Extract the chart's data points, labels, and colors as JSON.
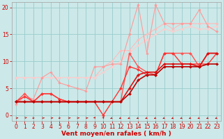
{
  "xlabel": "Vent moyen/en rafales ( km/h )",
  "xlim": [
    -0.5,
    23.5
  ],
  "ylim": [
    -1,
    21
  ],
  "bg_color": "#cce8e8",
  "grid_color": "#99cccc",
  "series": [
    {
      "x": [
        0,
        1,
        2,
        3,
        4,
        5,
        6,
        7,
        8,
        9,
        10,
        11,
        12,
        13,
        14,
        15,
        16,
        17,
        18,
        19,
        20,
        21,
        22,
        23
      ],
      "y": [
        7,
        7,
        7,
        7,
        7,
        7,
        7,
        7,
        7,
        7,
        9,
        10,
        12,
        12,
        14,
        15,
        16,
        17,
        16,
        17,
        17,
        17,
        17,
        17
      ],
      "color": "#ffbbbb",
      "lw": 0.8,
      "marker": "D",
      "ms": 1.8,
      "zorder": 2
    },
    {
      "x": [
        0,
        1,
        2,
        3,
        4,
        5,
        6,
        7,
        8,
        9,
        10,
        11,
        12,
        13,
        14,
        15,
        16,
        17,
        18,
        19,
        20,
        21,
        22,
        23
      ],
      "y": [
        7,
        7,
        7,
        7,
        7,
        7,
        7,
        7,
        7,
        7,
        8,
        9,
        10,
        11.5,
        13,
        14,
        15,
        16,
        15.5,
        16,
        16.5,
        16,
        16,
        16.5
      ],
      "color": "#ffcccc",
      "lw": 0.8,
      "marker": "D",
      "ms": 1.8,
      "zorder": 2
    },
    {
      "x": [
        0,
        1,
        2,
        3,
        4,
        5,
        6,
        7,
        8,
        9,
        10,
        11,
        12,
        13,
        14,
        15,
        16,
        17,
        18,
        19,
        20,
        21,
        22,
        23
      ],
      "y": [
        2,
        3.5,
        3,
        7,
        8,
        6,
        5.5,
        5,
        4.5,
        9,
        9,
        9.5,
        9.5,
        15,
        20.5,
        11.5,
        20.5,
        17,
        17,
        17,
        17,
        19.5,
        16.5,
        15.5
      ],
      "color": "#ff9999",
      "lw": 0.8,
      "marker": "D",
      "ms": 1.8,
      "zorder": 3
    },
    {
      "x": [
        0,
        1,
        2,
        3,
        4,
        5,
        6,
        7,
        8,
        9,
        10,
        11,
        12,
        13,
        14,
        15,
        16,
        17,
        18,
        19,
        20,
        21,
        22,
        23
      ],
      "y": [
        2.5,
        4,
        2.5,
        4,
        4,
        3,
        2.5,
        2.5,
        2.5,
        2.5,
        2.5,
        2.5,
        2.5,
        11.5,
        9,
        8,
        7.5,
        11.5,
        11.5,
        11.5,
        11.5,
        9,
        11.5,
        11.5
      ],
      "color": "#ff5555",
      "lw": 1.0,
      "marker": "D",
      "ms": 2.0,
      "zorder": 4
    },
    {
      "x": [
        0,
        1,
        2,
        3,
        4,
        5,
        6,
        7,
        8,
        9,
        10,
        11,
        12,
        13,
        14,
        15,
        16,
        17,
        18,
        19,
        20,
        21,
        22,
        23
      ],
      "y": [
        2.5,
        3.5,
        2.5,
        4,
        4,
        3,
        2.5,
        2.5,
        2.5,
        2.5,
        0,
        2.5,
        5,
        9,
        8.5,
        7.5,
        7.5,
        11.5,
        11.5,
        9.5,
        9.5,
        9.5,
        9.5,
        11.5
      ],
      "color": "#ff3333",
      "lw": 1.0,
      "marker": "D",
      "ms": 2.0,
      "zorder": 5
    },
    {
      "x": [
        0,
        1,
        2,
        3,
        4,
        5,
        6,
        7,
        8,
        9,
        10,
        11,
        12,
        13,
        14,
        15,
        16,
        17,
        18,
        19,
        20,
        21,
        22,
        23
      ],
      "y": [
        2.5,
        2.5,
        2.5,
        2.5,
        2.5,
        2.5,
        2.5,
        2.5,
        2.5,
        2.5,
        2.5,
        2.5,
        2.5,
        5,
        7.5,
        8,
        8,
        9.5,
        9.5,
        9.5,
        9.5,
        9,
        11.5,
        11.5
      ],
      "color": "#dd1111",
      "lw": 1.2,
      "marker": "D",
      "ms": 2.0,
      "zorder": 6
    },
    {
      "x": [
        0,
        1,
        2,
        3,
        4,
        5,
        6,
        7,
        8,
        9,
        10,
        11,
        12,
        13,
        14,
        15,
        16,
        17,
        18,
        19,
        20,
        21,
        22,
        23
      ],
      "y": [
        2.5,
        2.5,
        2.5,
        2.5,
        2.5,
        2.5,
        2.5,
        2.5,
        2.5,
        2.5,
        2.5,
        2.5,
        2.5,
        4,
        6.5,
        7.5,
        7.5,
        9,
        9,
        9,
        9,
        9,
        9.5,
        9.5
      ],
      "color": "#bb0000",
      "lw": 1.2,
      "marker": "D",
      "ms": 2.0,
      "zorder": 6
    }
  ],
  "xticks": [
    0,
    1,
    2,
    3,
    4,
    5,
    6,
    7,
    8,
    9,
    10,
    11,
    12,
    13,
    14,
    15,
    16,
    17,
    18,
    19,
    20,
    21,
    22,
    23
  ],
  "yticks": [
    0,
    5,
    10,
    15,
    20
  ],
  "tick_color": "#cc0000",
  "label_color": "#cc0000",
  "xlabel_fontsize": 6.5,
  "tick_fontsize": 5.5
}
